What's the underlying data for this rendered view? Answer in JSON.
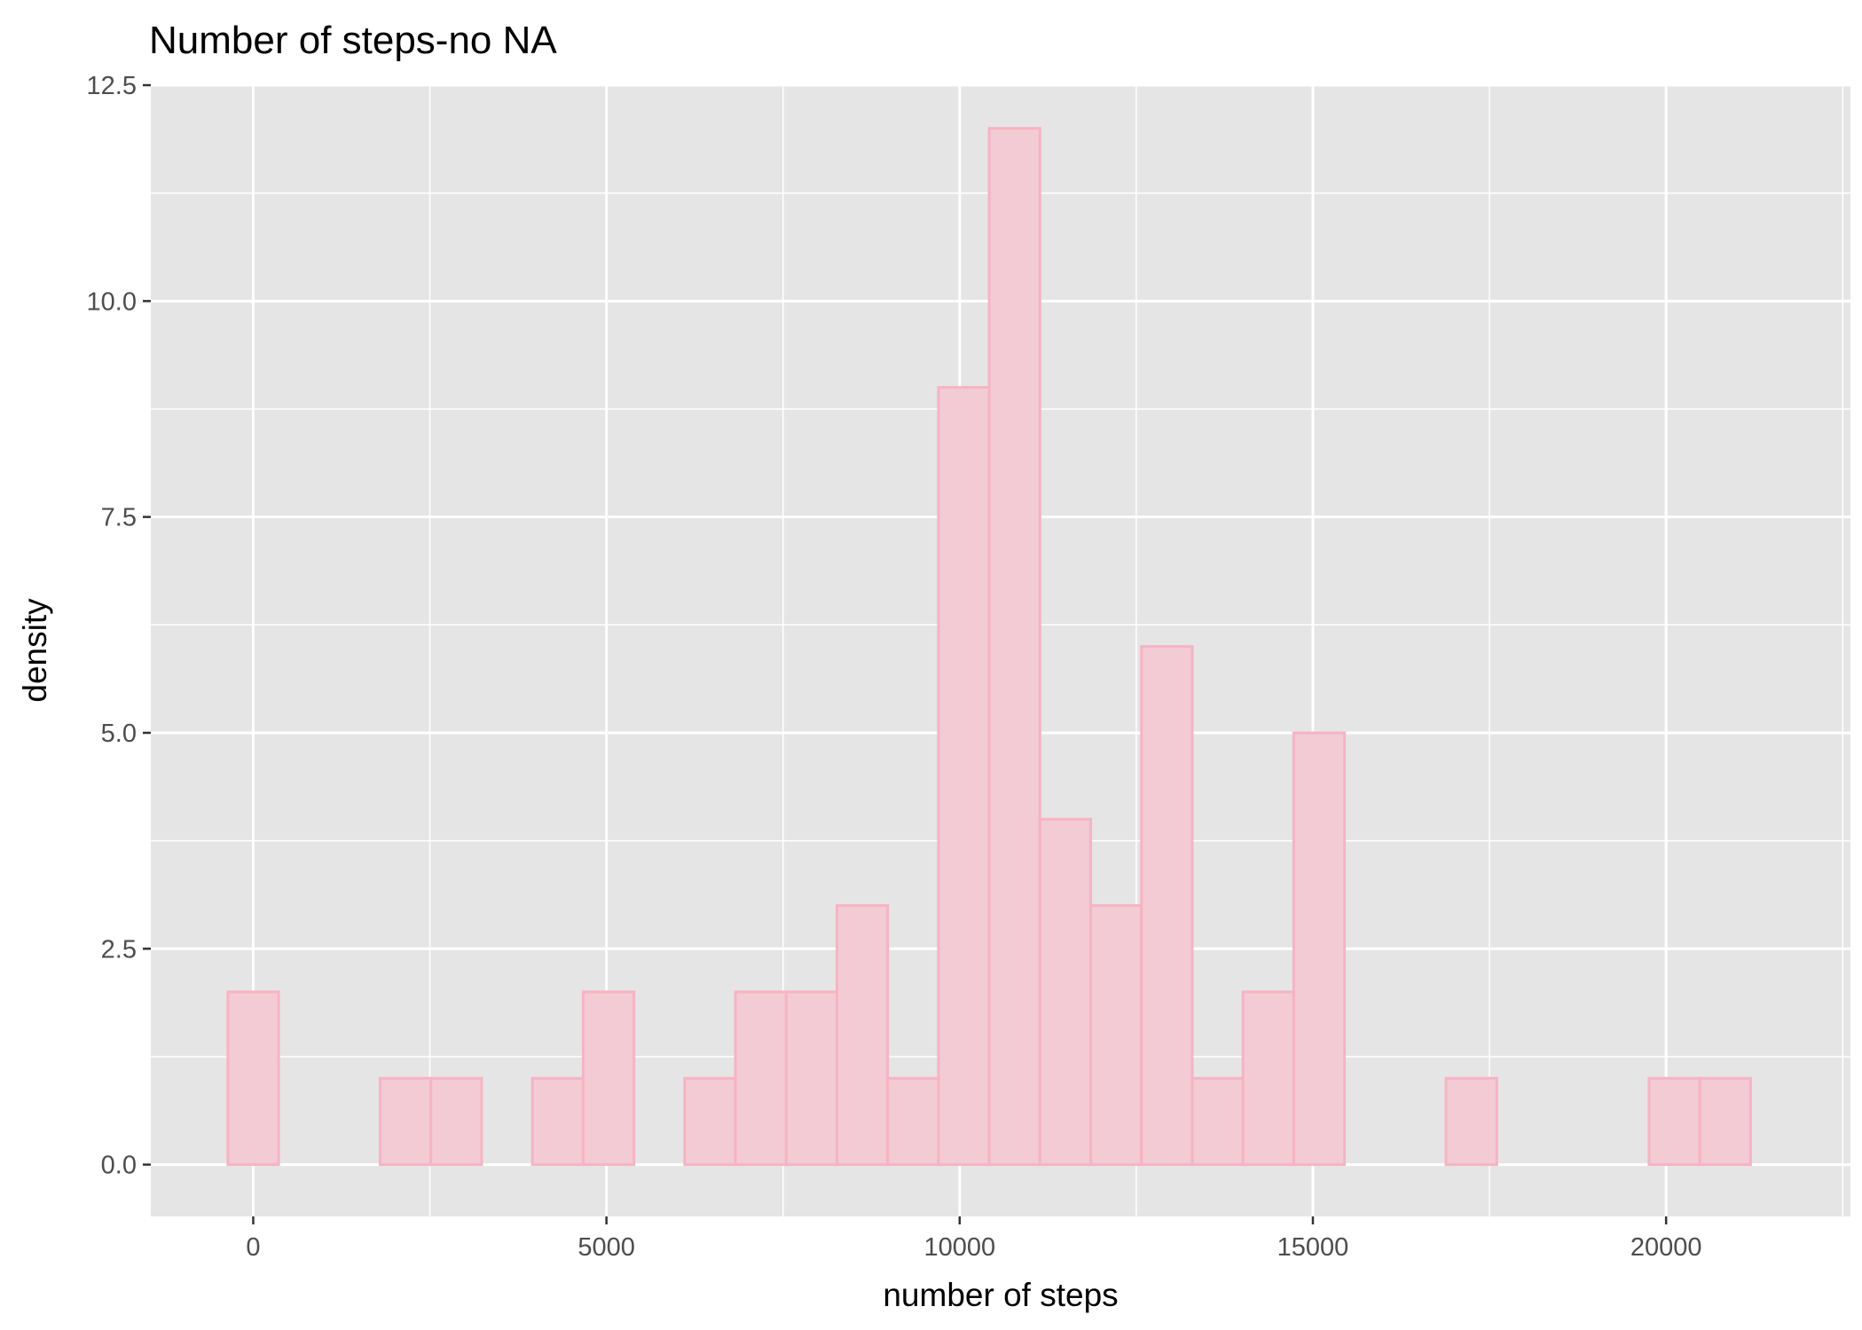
{
  "chart_data": {
    "type": "bar",
    "subtype": "histogram",
    "title": "Number of steps-no NA",
    "xlabel": "number of steps",
    "ylabel": "density",
    "bin_width": 718.5,
    "first_bin_center": 0,
    "bin_centers": [
      0,
      718.5,
      1437,
      2155.5,
      2874,
      3592.5,
      4311,
      5029.5,
      5748,
      6466.5,
      7185,
      7903.5,
      8622,
      9340.5,
      10059,
      10777.5,
      11496,
      12214.5,
      12933,
      13651.5,
      14370,
      15088.5,
      15807,
      16525.5,
      17244,
      17962.5,
      18681,
      19399.5,
      20118,
      20836.5
    ],
    "values": [
      2,
      0,
      0,
      1,
      1,
      0,
      1,
      2,
      0,
      1,
      2,
      2,
      3,
      1,
      9,
      12,
      4,
      3,
      6,
      1,
      2,
      5,
      0,
      0,
      1,
      0,
      0,
      0,
      1,
      1
    ],
    "xlim": [
      -1450,
      22610
    ],
    "ylim": [
      -0.6,
      12.5
    ],
    "x_ticks": [
      0,
      5000,
      10000,
      15000,
      20000
    ],
    "x_tick_labels": [
      "0",
      "5000",
      "10000",
      "15000",
      "20000"
    ],
    "y_ticks": [
      0,
      2.5,
      5,
      7.5,
      10,
      12.5
    ],
    "y_tick_labels": [
      "0.0",
      "2.5",
      "5.0",
      "7.5",
      "10.0",
      "12.5"
    ],
    "grid": true,
    "legend": "none",
    "colors": {
      "panel_background": "#e5e5e5",
      "grid_line": "#ffffff",
      "bar_fill": "#f2cbd4",
      "bar_outline": "#f7b3c3",
      "tick_mark": "#333333"
    }
  }
}
